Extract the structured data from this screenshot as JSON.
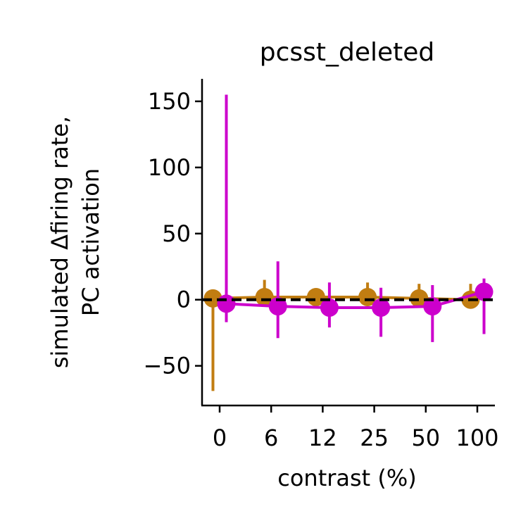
{
  "chart_data": {
    "type": "line",
    "title": "pcsst_deleted",
    "xlabel": "contrast (%)",
    "ylabel_line1": "simulated Δfiring rate,",
    "ylabel_line2": "PC activation",
    "x_tick_labels": [
      "0",
      "6",
      "12",
      "25",
      "50",
      "100"
    ],
    "y_ticks": [
      -50,
      0,
      50,
      100,
      150
    ],
    "y_tick_labels": [
      "−50",
      "0",
      "50",
      "100",
      "150"
    ],
    "ylim": [
      -80,
      167
    ],
    "reference_line": {
      "y": 0,
      "style": "dashed",
      "color": "#000000"
    },
    "grid": false,
    "legend": "none",
    "series": [
      {
        "color": "#c17d11",
        "x_index_offset": -0.13,
        "values": [
          1,
          2,
          2,
          2,
          1,
          0
        ],
        "err_low": [
          -69,
          -5,
          -3,
          -3,
          -3,
          -6
        ],
        "err_high": [
          4,
          15,
          6,
          13,
          12,
          12
        ]
      },
      {
        "color": "#cc00cc",
        "x_index_offset": 0.13,
        "values": [
          -3,
          -5,
          -6,
          -6,
          -5,
          6
        ],
        "err_low": [
          -17,
          -29,
          -21,
          -28,
          -32,
          -26
        ],
        "err_high": [
          155,
          29,
          13,
          9,
          11,
          16
        ]
      }
    ]
  }
}
